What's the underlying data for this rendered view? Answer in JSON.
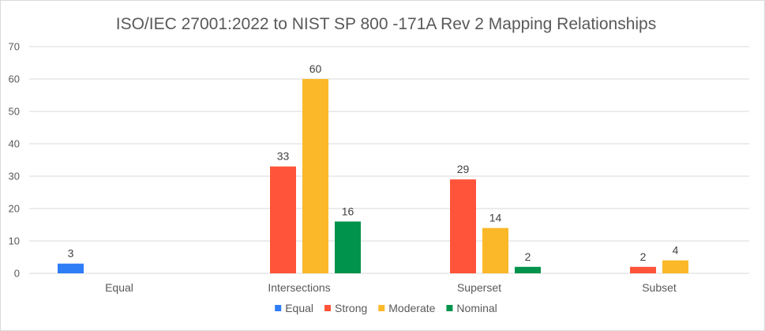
{
  "chart_data": {
    "type": "bar",
    "title": "ISO/IEC 27001:2022 to NIST SP 800 -171A Rev 2 Mapping Relationships",
    "xlabel": "",
    "ylabel": "",
    "ylim": [
      0,
      70
    ],
    "yticks": [
      0,
      10,
      20,
      30,
      40,
      50,
      60,
      70
    ],
    "grid": true,
    "legend_position": "bottom",
    "categories": [
      "Equal",
      "Intersections",
      "Superset",
      "Subset"
    ],
    "series": [
      {
        "name": "Equal",
        "color": "#2e7cf6",
        "values": [
          3,
          null,
          null,
          null
        ]
      },
      {
        "name": "Strong",
        "color": "#ff5439",
        "values": [
          null,
          33,
          29,
          2
        ]
      },
      {
        "name": "Moderate",
        "color": "#fbb829",
        "values": [
          null,
          60,
          14,
          4
        ]
      },
      {
        "name": "Nominal",
        "color": "#00934c",
        "values": [
          null,
          16,
          2,
          null
        ]
      }
    ]
  }
}
